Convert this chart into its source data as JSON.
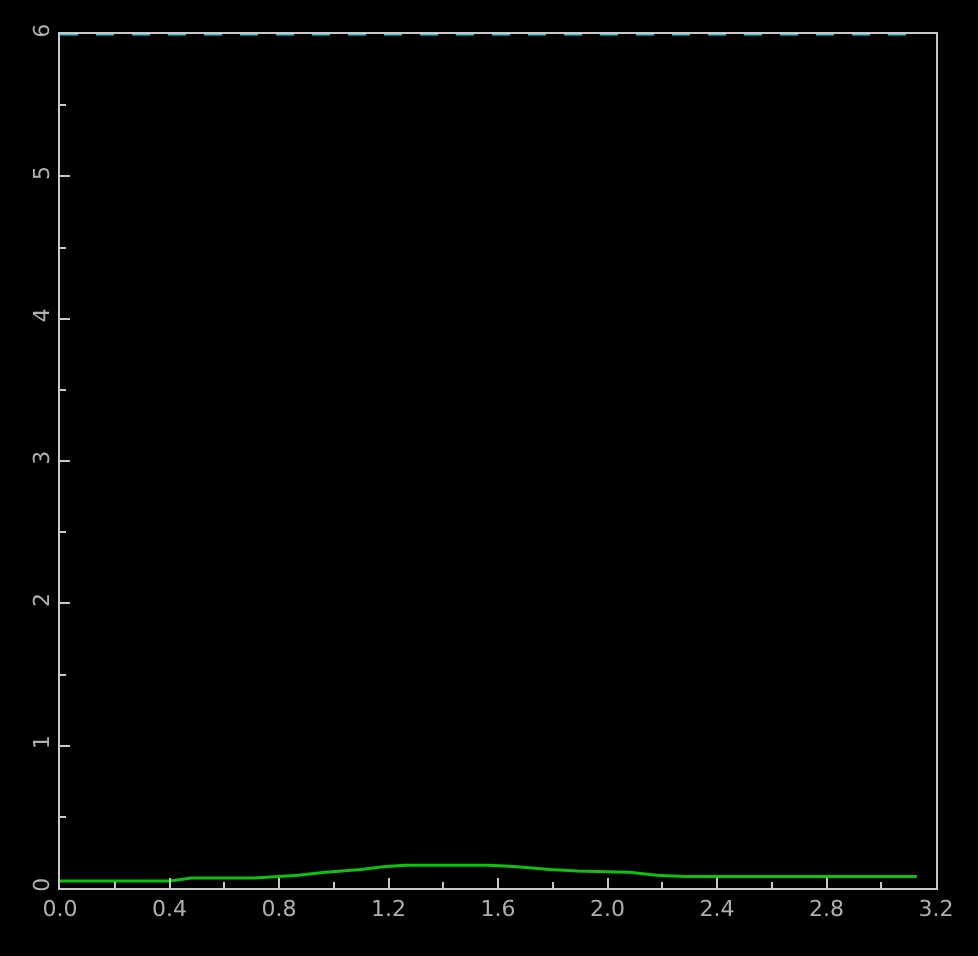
{
  "chart_data": {
    "type": "line",
    "xlim": [
      0,
      3.2
    ],
    "xticks": [
      {
        "value": 0,
        "label": "0.0"
      },
      0.4,
      0.8,
      1.2,
      1.6,
      {
        "value": 2,
        "label": "2.0"
      },
      2.4,
      2.8,
      3.2
    ],
    "ylim": [
      0,
      6
    ],
    "yticks": [
      0,
      1,
      2,
      3,
      4,
      5,
      6
    ],
    "grid": false,
    "marker": "none",
    "series": [
      {
        "color": "#10c010",
        "line_style": "solid",
        "x": [
          0,
          0.4,
          0.48,
          0.71,
          0.8,
          0.87,
          0.97,
          1.1,
          1.18,
          1.26,
          1.33,
          1.56,
          1.67,
          1.79,
          1.89,
          2.08,
          2.18,
          2.28,
          2.71,
          3.13
        ],
        "values": [
          0.05,
          0.05,
          0.07,
          0.07,
          0.08,
          0.09,
          0.11,
          0.13,
          0.15,
          0.16,
          0.16,
          0.16,
          0.15,
          0.13,
          0.12,
          0.11,
          0.09,
          0.08,
          0.08,
          0.08
        ]
      },
      {
        "color": "#30c8d0",
        "line_style": "dashed",
        "x": [
          0,
          3.13
        ],
        "values": [
          6,
          6
        ]
      }
    ]
  }
}
